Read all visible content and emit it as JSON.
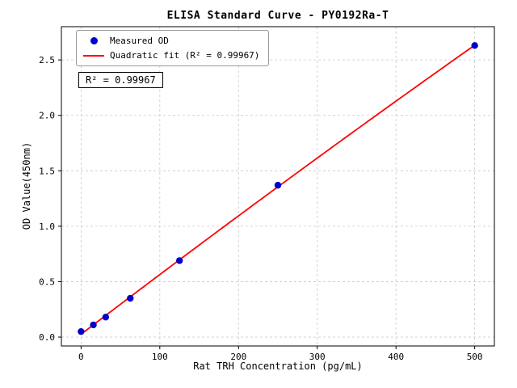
{
  "chart_data": {
    "type": "scatter",
    "title": "ELISA Standard Curve - PY0192Ra-T",
    "xlabel": "Rat TRH Concentration (pg/mL)",
    "ylabel": "OD Value(450nm)",
    "xlim": [
      -25,
      525
    ],
    "ylim": [
      -0.08,
      2.8
    ],
    "xticks": [
      "0",
      "100",
      "200",
      "300",
      "400",
      "500"
    ],
    "xtick_values": [
      0,
      100,
      200,
      300,
      400,
      500
    ],
    "yticks": [
      "0.0",
      "0.5",
      "1.0",
      "1.5",
      "2.0",
      "2.5"
    ],
    "ytick_values": [
      0,
      0.5,
      1.0,
      1.5,
      2.0,
      2.5
    ],
    "grid": true,
    "legend_position": "upper left",
    "annotation": "R² = 0.99967",
    "colors": {
      "points": "#0000cd",
      "fit_line": "#ff0000",
      "grid": "#c8c8c8",
      "axis": "#000000"
    },
    "series": [
      {
        "name": "Measured OD",
        "type": "scatter",
        "x": [
          0,
          15.6,
          31.25,
          62.5,
          125,
          250,
          500
        ],
        "y": [
          0.05,
          0.11,
          0.18,
          0.35,
          0.69,
          1.37,
          2.63
        ]
      },
      {
        "name": "Quadratic fit (R² = 0.99967)",
        "type": "line",
        "fit": "quadratic",
        "x_range": [
          0,
          500
        ]
      }
    ]
  }
}
